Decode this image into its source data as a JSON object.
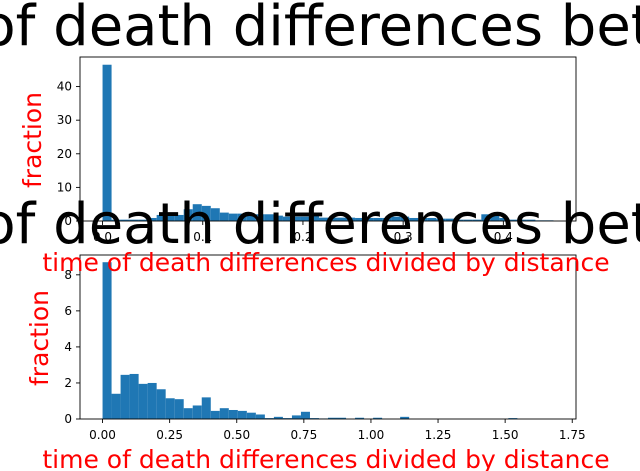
{
  "colors": {
    "bar": "#1f77b4",
    "label": "#ff0000",
    "text": "#000000"
  },
  "chart_data": [
    {
      "type": "bar",
      "histogram": true,
      "title": "time of death differences between",
      "xlabel": "time of death differences divided by distance",
      "ylabel": "fraction",
      "xlim": [
        -0.0225,
        0.4725
      ],
      "ylim": [
        0,
        48.8
      ],
      "xticks": [
        0.0,
        0.1,
        0.2,
        0.3,
        0.4
      ],
      "xtick_labels": [
        "0.0",
        "0.1",
        "0.2",
        "0.3",
        "0.4"
      ],
      "yticks": [
        0,
        10,
        20,
        30,
        40
      ],
      "ytick_labels": [
        "0",
        "10",
        "20",
        "30",
        "40"
      ],
      "bin_width": 0.009,
      "bin_start": 0.0,
      "values": [
        46.5,
        0.4,
        0.4,
        0.4,
        0.4,
        0.9,
        1.8,
        1.8,
        1.8,
        3.5,
        5.0,
        4.5,
        3.8,
        2.5,
        2.2,
        2.2,
        1.6,
        2.0,
        2.0,
        1.6,
        1.3,
        1.3,
        1.3,
        1.6,
        1.0,
        1.0,
        1.0,
        1.0,
        0.9,
        0.9,
        0.9,
        0.9,
        1.3,
        1.3,
        0.9,
        0.9,
        0.9,
        0.7,
        0.7,
        0.4,
        0.4,
        0.4,
        2.0,
        2.0,
        0.9,
        0.4,
        0.4,
        0.4,
        0.2,
        0.2
      ],
      "grid": false,
      "legend": "none"
    },
    {
      "type": "bar",
      "histogram": true,
      "title": "time of death differences between",
      "xlabel": "time of death differences divided by distance",
      "ylabel": "fraction",
      "xlim": [
        -0.084,
        1.764
      ],
      "ylim": [
        0,
        9.1
      ],
      "xticks": [
        0.0,
        0.25,
        0.5,
        0.75,
        1.0,
        1.25,
        1.5,
        1.75
      ],
      "xtick_labels": [
        "0.00",
        "0.25",
        "0.50",
        "0.75",
        "1.00",
        "1.25",
        "1.50",
        "1.75"
      ],
      "yticks": [
        0,
        2,
        4,
        6,
        8
      ],
      "ytick_labels": [
        "0",
        "2",
        "4",
        "6",
        "8"
      ],
      "bin_width": 0.0336,
      "bin_start": 0.0,
      "values": [
        8.7,
        1.4,
        2.45,
        2.5,
        1.95,
        2.0,
        1.65,
        1.15,
        1.1,
        0.6,
        0.75,
        1.2,
        0.45,
        0.6,
        0.5,
        0.45,
        0.35,
        0.25,
        0.05,
        0.12,
        0.05,
        0.2,
        0.4,
        0.05,
        0.03,
        0.07,
        0.07,
        0.0,
        0.07,
        0.0,
        0.07,
        0.0,
        0.0,
        0.12,
        0.0,
        0.0,
        0.0,
        0.0,
        0.0,
        0.0,
        0.0,
        0.0,
        0.0,
        0.0,
        0.0,
        0.05,
        0.0,
        0.0,
        0.0,
        0.0
      ],
      "grid": false,
      "legend": "none"
    }
  ]
}
